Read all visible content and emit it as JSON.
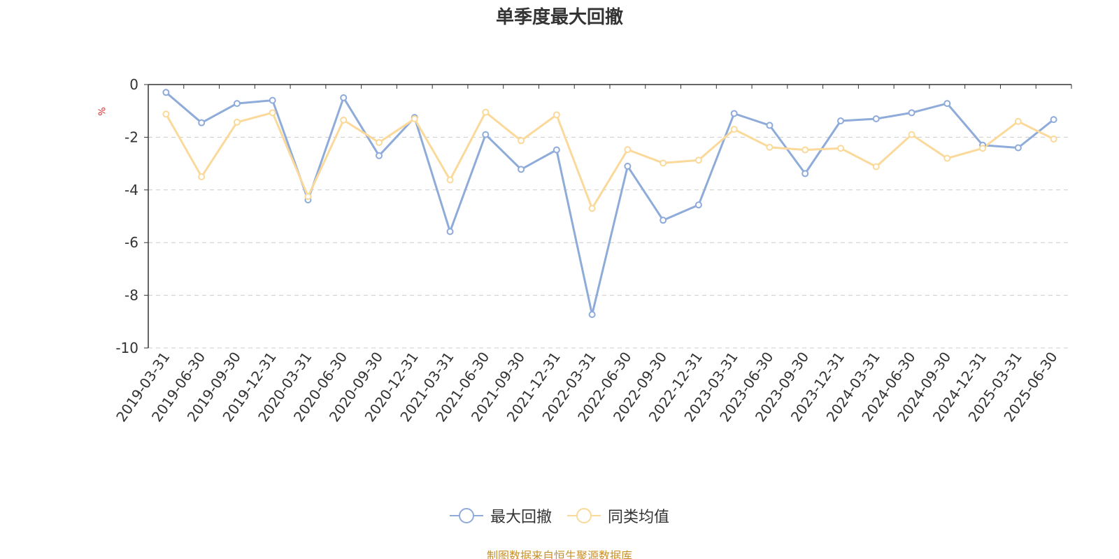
{
  "title": "单季度最大回撤",
  "y_unit": "%",
  "source_note": "制图数据来自恒生聚源数据库",
  "legend": [
    {
      "label": "最大回撤",
      "color": "#8eabd9"
    },
    {
      "label": "同类均值",
      "color": "#fad99a"
    }
  ],
  "chart_data": {
    "type": "line",
    "title": "单季度最大回撤",
    "xlabel": "",
    "ylabel": "%",
    "ylim": [
      -10,
      0
    ],
    "yticks": [
      0,
      -2,
      -4,
      -6,
      -8,
      -10
    ],
    "grid": true,
    "legend_position": "bottom",
    "categories": [
      "2019-03-31",
      "2019-06-30",
      "2019-09-30",
      "2019-12-31",
      "2020-03-31",
      "2020-06-30",
      "2020-09-30",
      "2020-12-31",
      "2021-03-31",
      "2021-06-30",
      "2021-09-30",
      "2021-12-31",
      "2022-03-31",
      "2022-06-30",
      "2022-09-30",
      "2022-12-31",
      "2023-03-31",
      "2023-06-30",
      "2023-09-30",
      "2023-12-31",
      "2024-03-31",
      "2024-06-30",
      "2024-09-30",
      "2024-12-31",
      "2025-03-31",
      "2025-06-30"
    ],
    "series": [
      {
        "name": "最大回撤",
        "color": "#8eabd9",
        "values": [
          -0.3,
          -1.45,
          -0.72,
          -0.6,
          -4.38,
          -0.5,
          -2.7,
          -1.25,
          -5.58,
          -1.9,
          -3.22,
          -2.48,
          -8.73,
          -3.1,
          -5.15,
          -4.57,
          -1.1,
          -1.55,
          -3.38,
          -1.38,
          -1.3,
          -1.07,
          -0.72,
          -2.3,
          -2.4,
          -1.33
        ]
      },
      {
        "name": "同类均值",
        "color": "#fad99a",
        "values": [
          -1.12,
          -3.5,
          -1.43,
          -1.07,
          -4.25,
          -1.35,
          -2.2,
          -1.3,
          -3.62,
          -1.05,
          -2.13,
          -1.15,
          -4.7,
          -2.47,
          -2.98,
          -2.87,
          -1.7,
          -2.38,
          -2.48,
          -2.42,
          -3.12,
          -1.9,
          -2.8,
          -2.42,
          -1.4,
          -2.07
        ]
      }
    ]
  }
}
